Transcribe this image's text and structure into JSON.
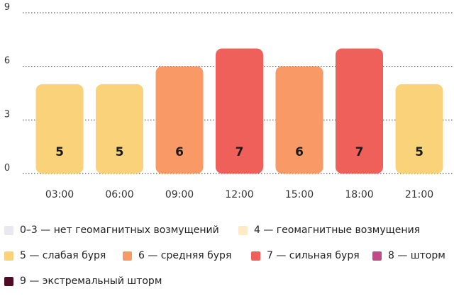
{
  "chart_data": {
    "type": "bar",
    "categories": [
      "03:00",
      "06:00",
      "09:00",
      "12:00",
      "15:00",
      "18:00",
      "21:00"
    ],
    "values": [
      5,
      5,
      6,
      7,
      6,
      7,
      5
    ],
    "data_labels": [
      "5",
      "5",
      "6",
      "7",
      "6",
      "7",
      "5"
    ],
    "y_ticks": [
      "0",
      "3",
      "6",
      "9"
    ],
    "ylim": [
      0,
      9
    ],
    "grid": "horizontal dotted",
    "legend_position": "bottom",
    "value_colors": {
      "4": "#fdebc8",
      "5": "#f9d27a",
      "6": "#f99a66",
      "7": "#f0605a",
      "8": "#c24a86",
      "9": "#4f0d25"
    }
  },
  "legend": [
    {
      "label": "0–3 — нет геомагнитных возмущений",
      "color": "#e8e8ee"
    },
    {
      "label": "4 — геомагнитные возмущения",
      "color": "#fdebc8"
    },
    {
      "label": "5 — слабая буря",
      "color": "#f9d27a"
    },
    {
      "label": "6 — средняя буря",
      "color": "#f99a66"
    },
    {
      "label": "7 — сильная буря",
      "color": "#f0605a"
    },
    {
      "label": "8 — шторм",
      "color": "#c24a86"
    },
    {
      "label": "9 — экстремальный шторм",
      "color": "#4f0d25"
    }
  ]
}
